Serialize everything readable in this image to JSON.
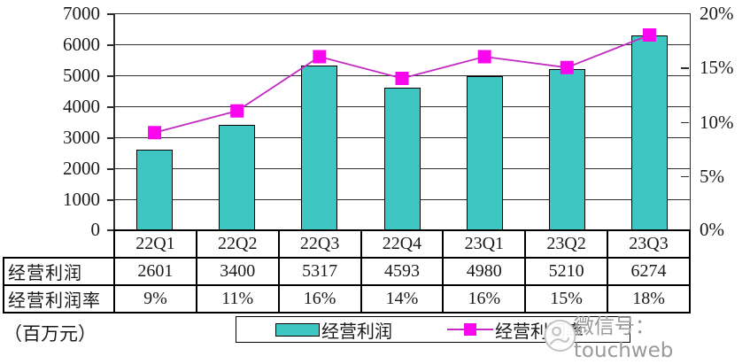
{
  "unit_label": "（百万元）",
  "watermark": {
    "text": "微信号：touchweb",
    "icon": "wechat-circle-icon"
  },
  "legend": {
    "bar_label": "经营利润",
    "line_label": "经营利润率"
  },
  "table": {
    "row1_label": "经营利润",
    "row2_label": "经营利润率"
  },
  "colors": {
    "bar_fill": "#3ec7c2",
    "bar_border": "#000000",
    "line": "#c32bc3",
    "marker": "#fa06ee",
    "grid": "#2f2f2f"
  },
  "chart_data": {
    "type": "bar",
    "categories": [
      "22Q1",
      "22Q2",
      "22Q3",
      "22Q4",
      "23Q1",
      "23Q2",
      "23Q3"
    ],
    "series": [
      {
        "name": "经营利润",
        "type": "bar",
        "axis": "left",
        "values": [
          2601,
          3400,
          5317,
          4593,
          4980,
          5210,
          6274
        ]
      },
      {
        "name": "经营利润率",
        "type": "line",
        "axis": "right",
        "values": [
          9,
          11,
          16,
          14,
          16,
          15,
          18
        ]
      }
    ],
    "left_axis": {
      "min": 0,
      "max": 7000,
      "step": 1000,
      "ticks": [
        "0",
        "1000",
        "2000",
        "3000",
        "4000",
        "5000",
        "6000",
        "7000"
      ]
    },
    "right_axis": {
      "min": 0,
      "max": 20,
      "step": 5,
      "ticks": [
        "0%",
        "5%",
        "10%",
        "15%",
        "20%"
      ]
    },
    "unit": "百万元",
    "grid": "horizontal",
    "legend_position": "bottom"
  }
}
